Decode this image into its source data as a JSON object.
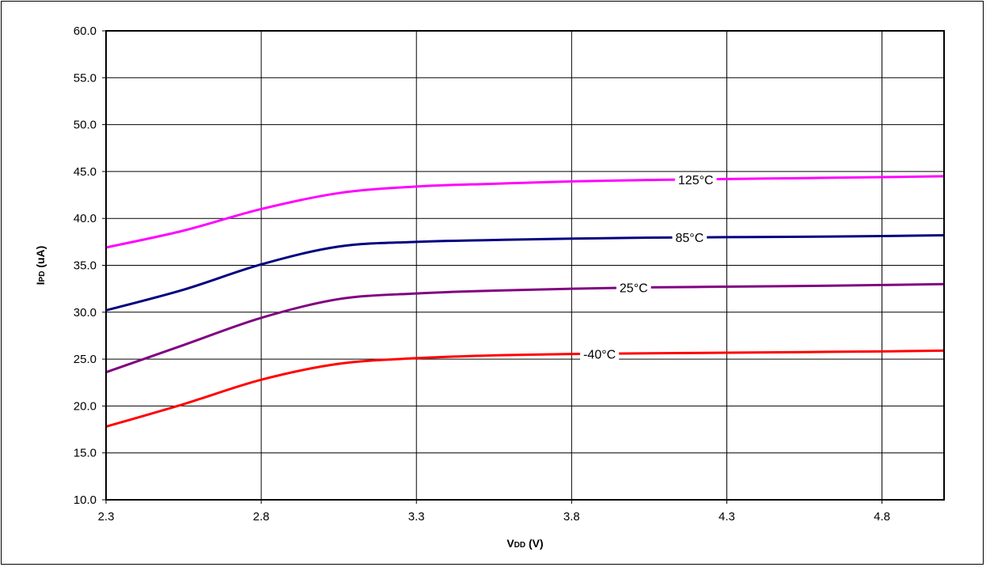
{
  "chart_data": {
    "type": "line",
    "xlabel": {
      "main": "V",
      "sub": "DD",
      "suffix": " (V)"
    },
    "ylabel": {
      "main": "I",
      "sub": "PD",
      "suffix": " (uA)"
    },
    "xlim": [
      2.3,
      5.0
    ],
    "ylim": [
      10.0,
      60.0
    ],
    "xticks": [
      2.3,
      2.8,
      3.3,
      3.8,
      4.3,
      4.8
    ],
    "yticks": [
      10.0,
      15.0,
      20.0,
      25.0,
      30.0,
      35.0,
      40.0,
      45.0,
      50.0,
      55.0,
      60.0
    ],
    "grid": true,
    "series": [
      {
        "name": "125°C",
        "color": "#ff00ff",
        "label_at_x": 4.2,
        "x": [
          2.3,
          2.55,
          2.8,
          3.05,
          3.3,
          3.55,
          3.8,
          4.05,
          4.3,
          4.55,
          4.8,
          5.0
        ],
        "y": [
          36.9,
          38.7,
          41.0,
          42.7,
          43.4,
          43.7,
          43.95,
          44.1,
          44.2,
          44.3,
          44.4,
          44.5
        ]
      },
      {
        "name": "85°C",
        "color": "#000080",
        "label_at_x": 4.18,
        "x": [
          2.3,
          2.55,
          2.8,
          3.05,
          3.3,
          3.55,
          3.8,
          4.05,
          4.3,
          4.55,
          4.8,
          5.0
        ],
        "y": [
          30.2,
          32.4,
          35.1,
          37.0,
          37.5,
          37.7,
          37.85,
          37.95,
          38.0,
          38.05,
          38.12,
          38.2
        ]
      },
      {
        "name": "25°C",
        "color": "#800080",
        "label_at_x": 4.0,
        "x": [
          2.3,
          2.55,
          2.8,
          3.05,
          3.3,
          3.55,
          3.8,
          4.05,
          4.3,
          4.55,
          4.8,
          5.0
        ],
        "y": [
          23.6,
          26.5,
          29.4,
          31.4,
          32.0,
          32.3,
          32.5,
          32.65,
          32.72,
          32.8,
          32.9,
          33.0
        ]
      },
      {
        "name": "-40°C",
        "color": "#ff0000",
        "label_at_x": 3.89,
        "x": [
          2.3,
          2.55,
          2.8,
          3.05,
          3.3,
          3.55,
          3.8,
          4.05,
          4.3,
          4.55,
          4.8,
          5.0
        ],
        "y": [
          17.8,
          20.2,
          22.8,
          24.5,
          25.1,
          25.4,
          25.55,
          25.62,
          25.68,
          25.75,
          25.82,
          25.9
        ]
      }
    ]
  }
}
